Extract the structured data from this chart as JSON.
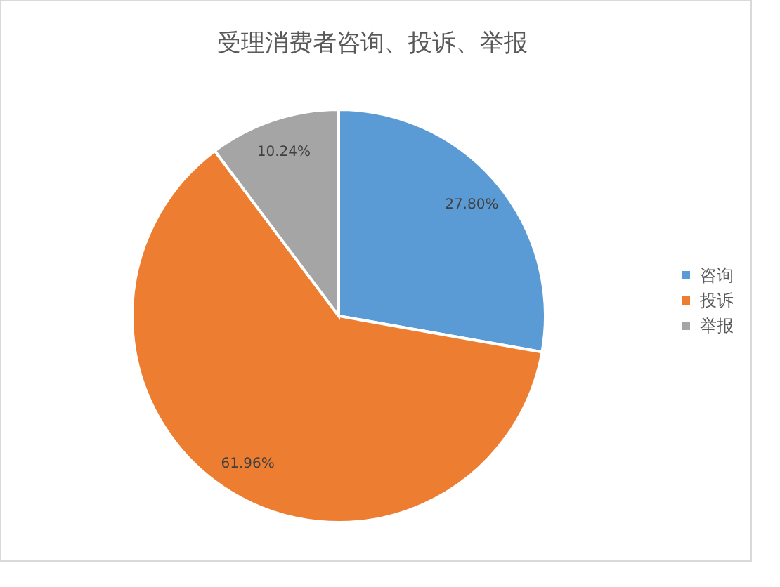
{
  "chart_data": {
    "type": "pie",
    "title": "受理消费者咨询、投诉、举报",
    "categories": [
      "咨询",
      "投诉",
      "举报"
    ],
    "values": [
      27.8,
      61.96,
      10.24
    ],
    "colors": [
      "#5b9bd5",
      "#ed7d31",
      "#a5a5a5"
    ],
    "value_labels": [
      "27.80%",
      "61.96%",
      "10.24%"
    ],
    "legend": "right"
  }
}
